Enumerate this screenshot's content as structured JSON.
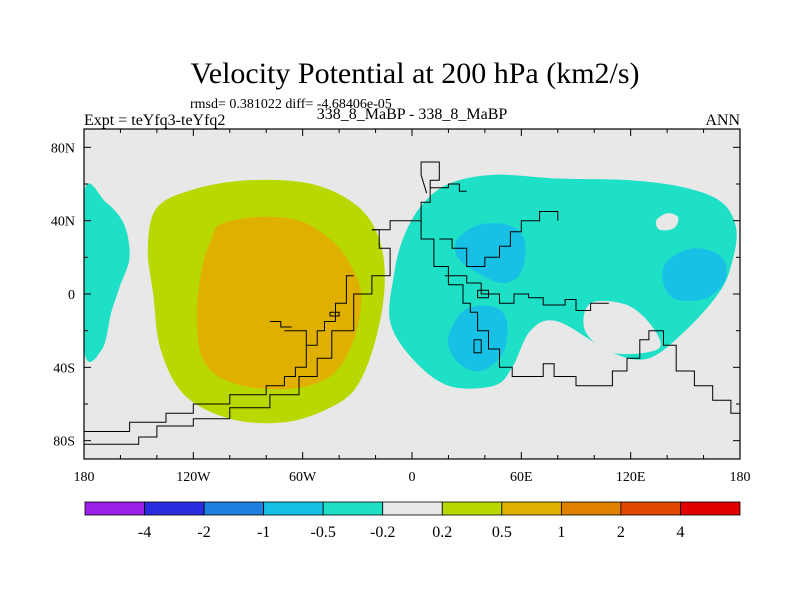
{
  "chart_data": {
    "type": "contour-map",
    "title": "Velocity Potential at 200 hPa (km2/s)",
    "stats_line": "rmsd= 0.381022 diff= -4.68406e-05",
    "left_label": "Expt = teYfq3-teYfq2",
    "center_label": "338_8_MaBP - 338_8_MaBP",
    "right_label": "ANN",
    "x_ticks": [
      {
        "value": -180,
        "label": "180"
      },
      {
        "value": -120,
        "label": "120W"
      },
      {
        "value": -60,
        "label": "60W"
      },
      {
        "value": 0,
        "label": "0"
      },
      {
        "value": 60,
        "label": "60E"
      },
      {
        "value": 120,
        "label": "120E"
      },
      {
        "value": 180,
        "label": "180"
      }
    ],
    "y_ticks": [
      {
        "value": 80,
        "label": "80N"
      },
      {
        "value": 40,
        "label": "40N"
      },
      {
        "value": 0,
        "label": "0"
      },
      {
        "value": -40,
        "label": "40S"
      },
      {
        "value": -80,
        "label": "80S"
      }
    ],
    "xlim": [
      -180,
      180
    ],
    "ylim": [
      -90,
      90
    ],
    "colorbar": {
      "colors": [
        "#9c1fe8",
        "#2b2be0",
        "#1f7fe0",
        "#18c0e6",
        "#1ee0c6",
        "#e8e8e8",
        "#b8d800",
        "#e0b000",
        "#e08000",
        "#e04800",
        "#e00000"
      ],
      "labels": [
        "-4",
        "-2",
        "-1",
        "-0.5",
        "-0.2",
        "0.2",
        "0.5",
        "1",
        "2",
        "4"
      ]
    },
    "regions": [
      {
        "name": "positive-0.2-0.5",
        "level": 0.2,
        "color": "#b8d800",
        "points": [
          [
            -140,
            47
          ],
          [
            -120,
            57
          ],
          [
            -90,
            62
          ],
          [
            -55,
            60
          ],
          [
            -30,
            48
          ],
          [
            -18,
            30
          ],
          [
            -15,
            5
          ],
          [
            -20,
            -25
          ],
          [
            -30,
            -50
          ],
          [
            -45,
            -62
          ],
          [
            -70,
            -70
          ],
          [
            -100,
            -68
          ],
          [
            -125,
            -55
          ],
          [
            -138,
            -30
          ],
          [
            -142,
            0
          ],
          [
            -145,
            25
          ]
        ]
      },
      {
        "name": "positive-0.5-1",
        "level": 0.5,
        "color": "#e0b000",
        "points": [
          [
            -105,
            38
          ],
          [
            -85,
            42
          ],
          [
            -62,
            40
          ],
          [
            -45,
            30
          ],
          [
            -35,
            18
          ],
          [
            -28,
            0
          ],
          [
            -32,
            -25
          ],
          [
            -45,
            -45
          ],
          [
            -70,
            -52
          ],
          [
            -100,
            -48
          ],
          [
            -115,
            -35
          ],
          [
            -118,
            -10
          ],
          [
            -115,
            15
          ],
          [
            -110,
            30
          ]
        ]
      },
      {
        "name": "negative-west-0.2-0.5",
        "level": -0.2,
        "color": "#1ee0c6",
        "points": [
          [
            -180,
            55
          ],
          [
            -168,
            50
          ],
          [
            -158,
            38
          ],
          [
            -155,
            20
          ],
          [
            -160,
            5
          ],
          [
            -165,
            -10
          ],
          [
            -170,
            -30
          ],
          [
            -180,
            -30
          ]
        ]
      },
      {
        "name": "negative-east-0.2-0.5",
        "level": -0.2,
        "color": "#1ee0c6",
        "points": [
          [
            5,
            48
          ],
          [
            20,
            60
          ],
          [
            45,
            65
          ],
          [
            80,
            63
          ],
          [
            120,
            62
          ],
          [
            150,
            58
          ],
          [
            170,
            50
          ],
          [
            178,
            35
          ],
          [
            175,
            15
          ],
          [
            168,
            0
          ],
          [
            150,
            -20
          ],
          [
            130,
            -35
          ],
          [
            110,
            -32
          ],
          [
            80,
            -15
          ],
          [
            65,
            -20
          ],
          [
            55,
            -40
          ],
          [
            45,
            -50
          ],
          [
            20,
            -50
          ],
          [
            0,
            -35
          ],
          [
            -12,
            -15
          ],
          [
            -10,
            10
          ],
          [
            -5,
            30
          ]
        ]
      },
      {
        "name": "negative-east-0.5-1-north",
        "level": -0.5,
        "color": "#18c0e6",
        "points": [
          [
            25,
            30
          ],
          [
            38,
            38
          ],
          [
            55,
            37
          ],
          [
            62,
            28
          ],
          [
            60,
            12
          ],
          [
            50,
            6
          ],
          [
            35,
            12
          ],
          [
            25,
            20
          ]
        ]
      },
      {
        "name": "negative-east-0.5-1-south",
        "level": -0.5,
        "color": "#18c0e6",
        "points": [
          [
            22,
            -18
          ],
          [
            30,
            -8
          ],
          [
            45,
            -7
          ],
          [
            52,
            -15
          ],
          [
            50,
            -32
          ],
          [
            38,
            -42
          ],
          [
            26,
            -38
          ],
          [
            20,
            -28
          ]
        ]
      },
      {
        "name": "negative-east-0.5-1-pacific",
        "level": -0.5,
        "color": "#18c0e6",
        "points": [
          [
            140,
            18
          ],
          [
            155,
            25
          ],
          [
            170,
            20
          ],
          [
            172,
            8
          ],
          [
            162,
            -2
          ],
          [
            145,
            -3
          ],
          [
            138,
            6
          ]
        ]
      },
      {
        "name": "neutral-hole-east",
        "level": 0,
        "color": "#e8e8e8",
        "points": [
          [
            98,
            -5
          ],
          [
            118,
            -6
          ],
          [
            132,
            -18
          ],
          [
            135,
            -30
          ],
          [
            110,
            -32
          ],
          [
            95,
            -20
          ]
        ]
      },
      {
        "name": "neutral-hole-pacific",
        "level": 0,
        "color": "#e8e8e8",
        "points": [
          [
            134,
            40
          ],
          [
            140,
            44
          ],
          [
            146,
            42
          ],
          [
            144,
            36
          ],
          [
            136,
            35
          ]
        ]
      }
    ],
    "coastlines": [
      [
        [
          -32,
          10
        ],
        [
          -36,
          10
        ],
        [
          -36,
          -5
        ],
        [
          -42,
          -5
        ],
        [
          -42,
          -15
        ],
        [
          -48,
          -15
        ],
        [
          -48,
          -20
        ],
        [
          -52,
          -20
        ],
        [
          -52,
          -28
        ],
        [
          -58,
          -28
        ],
        [
          -58,
          -40
        ],
        [
          -64,
          -40
        ],
        [
          -64,
          -45
        ],
        [
          -70,
          -45
        ],
        [
          -70,
          -50
        ],
        [
          -80,
          -50
        ],
        [
          -80,
          -55
        ],
        [
          -100,
          -55
        ],
        [
          -100,
          -60
        ],
        [
          -120,
          -60
        ],
        [
          -120,
          -65
        ],
        [
          -135,
          -65
        ],
        [
          -135,
          -70
        ],
        [
          -155,
          -70
        ],
        [
          -155,
          -75
        ],
        [
          -180,
          -75
        ]
      ],
      [
        [
          -22,
          35
        ],
        [
          -18,
          35
        ],
        [
          -18,
          25
        ],
        [
          -12,
          25
        ],
        [
          -12,
          10
        ],
        [
          -22,
          10
        ],
        [
          -22,
          0
        ],
        [
          -32,
          0
        ],
        [
          -32,
          -20
        ],
        [
          -44,
          -20
        ],
        [
          -44,
          -35
        ],
        [
          -52,
          -35
        ],
        [
          -52,
          -45
        ],
        [
          -62,
          -45
        ],
        [
          -62,
          -55
        ],
        [
          -78,
          -55
        ],
        [
          -78,
          -62
        ],
        [
          -100,
          -62
        ],
        [
          -100,
          -68
        ],
        [
          -120,
          -68
        ],
        [
          -120,
          -72
        ],
        [
          -140,
          -72
        ],
        [
          -140,
          -78
        ],
        [
          -150,
          -78
        ],
        [
          -150,
          -82
        ],
        [
          -180,
          -82
        ]
      ],
      [
        [
          -22,
          35
        ],
        [
          -12,
          35
        ],
        [
          -12,
          40
        ],
        [
          5,
          40
        ],
        [
          5,
          50
        ],
        [
          10,
          50
        ],
        [
          10,
          62
        ],
        [
          15,
          62
        ],
        [
          15,
          72
        ],
        [
          5,
          72
        ],
        [
          5,
          65
        ],
        [
          8,
          55
        ]
      ],
      [
        [
          -70,
          -20
        ],
        [
          -58,
          -20
        ],
        [
          -58,
          -28
        ]
      ],
      [
        [
          -45,
          -10
        ],
        [
          -40,
          -10
        ],
        [
          -40,
          -12
        ],
        [
          -45,
          -12
        ],
        [
          -45,
          -10
        ]
      ],
      [
        [
          -78,
          -15
        ],
        [
          -72,
          -15
        ],
        [
          -72,
          -18
        ],
        [
          -66,
          -18
        ]
      ],
      [
        [
          5,
          40
        ],
        [
          5,
          30
        ],
        [
          12,
          30
        ],
        [
          12,
          15
        ],
        [
          20,
          15
        ],
        [
          20,
          5
        ],
        [
          28,
          5
        ],
        [
          28,
          -5
        ],
        [
          32,
          -5
        ],
        [
          32,
          -10
        ],
        [
          36,
          -10
        ],
        [
          36,
          -20
        ],
        [
          42,
          -20
        ],
        [
          42,
          -30
        ],
        [
          48,
          -30
        ],
        [
          48,
          -40
        ],
        [
          55,
          -40
        ],
        [
          55,
          -45
        ],
        [
          72,
          -45
        ],
        [
          72,
          -38
        ],
        [
          78,
          -38
        ],
        [
          78,
          -45
        ],
        [
          90,
          -45
        ],
        [
          90,
          -50
        ],
        [
          110,
          -50
        ],
        [
          110,
          -42
        ],
        [
          118,
          -42
        ],
        [
          118,
          -35
        ],
        [
          125,
          -35
        ],
        [
          125,
          -25
        ],
        [
          130,
          -25
        ],
        [
          130,
          -20
        ],
        [
          138,
          -20
        ],
        [
          138,
          -28
        ],
        [
          145,
          -28
        ],
        [
          145,
          -42
        ],
        [
          155,
          -42
        ],
        [
          155,
          -50
        ],
        [
          165,
          -50
        ],
        [
          165,
          -58
        ],
        [
          175,
          -58
        ],
        [
          175,
          -65
        ],
        [
          180,
          -65
        ]
      ],
      [
        [
          15,
          30
        ],
        [
          22,
          30
        ],
        [
          22,
          25
        ],
        [
          30,
          25
        ],
        [
          30,
          15
        ],
        [
          40,
          15
        ],
        [
          40,
          20
        ],
        [
          48,
          20
        ],
        [
          48,
          26
        ],
        [
          54,
          26
        ],
        [
          54,
          34
        ],
        [
          60,
          34
        ],
        [
          60,
          40
        ],
        [
          70,
          40
        ],
        [
          70,
          45
        ],
        [
          80,
          45
        ],
        [
          80,
          40
        ]
      ],
      [
        [
          18,
          10
        ],
        [
          30,
          10
        ],
        [
          30,
          6
        ],
        [
          38,
          6
        ],
        [
          38,
          0
        ],
        [
          48,
          0
        ],
        [
          48,
          -5
        ],
        [
          56,
          -5
        ],
        [
          56,
          0
        ],
        [
          64,
          0
        ],
        [
          64,
          -2
        ],
        [
          72,
          -2
        ],
        [
          72,
          -6
        ],
        [
          84,
          -6
        ],
        [
          84,
          -3
        ],
        [
          90,
          -3
        ],
        [
          90,
          -9
        ],
        [
          98,
          -9
        ],
        [
          98,
          -5
        ],
        [
          108,
          -5
        ]
      ],
      [
        [
          34,
          -25
        ],
        [
          38,
          -25
        ],
        [
          38,
          -32
        ],
        [
          34,
          -32
        ],
        [
          34,
          -25
        ]
      ],
      [
        [
          10,
          58
        ],
        [
          20,
          58
        ],
        [
          20,
          60
        ],
        [
          26,
          60
        ],
        [
          26,
          56
        ],
        [
          30,
          56
        ]
      ],
      [
        [
          36,
          2
        ],
        [
          42,
          2
        ],
        [
          42,
          -2
        ],
        [
          36,
          -2
        ],
        [
          36,
          2
        ]
      ]
    ]
  }
}
